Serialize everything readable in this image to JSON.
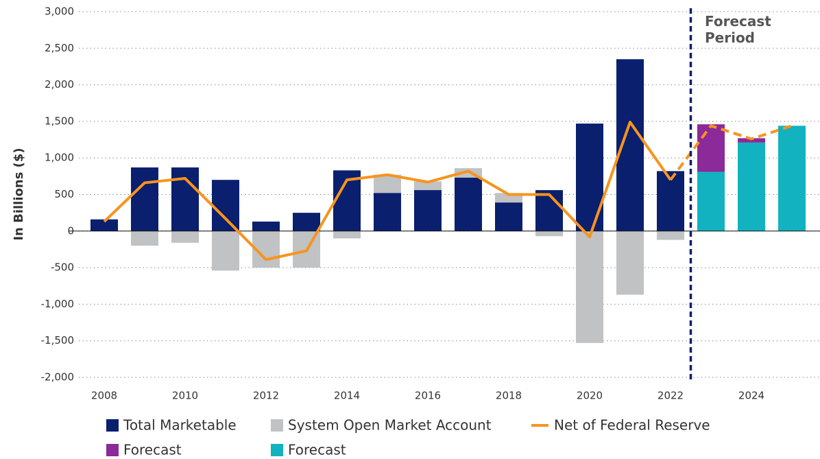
{
  "chart_data": {
    "type": "bar",
    "y_label": "In Billions ($)",
    "annotation": "Forecast Period",
    "categories": [
      "2008",
      null,
      "2010",
      null,
      "2012",
      null,
      "2014",
      null,
      "2016",
      null,
      "2018",
      null,
      "2020",
      null,
      "2022",
      null,
      "2024",
      null
    ],
    "series": [
      {
        "name": "Total Marketable",
        "type": "bar",
        "color": "#0a1f6e",
        "values": [
          160,
          870,
          870,
          700,
          130,
          250,
          830,
          520,
          560,
          730,
          390,
          560,
          1470,
          2350,
          820,
          null,
          null,
          null
        ]
      },
      {
        "name": "System Open Market Account",
        "type": "bar",
        "color": "#c0c2c4",
        "values": [
          null,
          -200,
          -160,
          -540,
          -500,
          -500,
          -100,
          770,
          680,
          860,
          520,
          -70,
          -1530,
          -870,
          -120,
          null,
          null,
          null
        ]
      },
      {
        "name": "Net of Federal Reserve",
        "type": "line",
        "color": "#f7941d",
        "values": [
          130,
          660,
          720,
          170,
          -390,
          -270,
          700,
          770,
          670,
          820,
          500,
          500,
          -80,
          1490,
          700,
          null,
          null,
          null
        ],
        "forecast_values": [
          null,
          null,
          null,
          null,
          null,
          null,
          null,
          null,
          null,
          null,
          null,
          null,
          null,
          null,
          700,
          1440,
          1260,
          1440
        ]
      },
      {
        "name": "Forecast",
        "type": "bar",
        "stack": true,
        "color": "#8b2a98",
        "values": [
          null,
          null,
          null,
          null,
          null,
          null,
          null,
          null,
          null,
          null,
          null,
          null,
          null,
          null,
          null,
          650,
          60,
          null
        ]
      },
      {
        "name": "Forecast",
        "type": "bar",
        "stack": true,
        "color": "#12b2c0",
        "values": [
          null,
          null,
          null,
          null,
          null,
          null,
          null,
          null,
          null,
          null,
          null,
          null,
          null,
          null,
          null,
          810,
          1210,
          1440
        ]
      }
    ],
    "ylim": [
      -2000,
      3000
    ],
    "yticks": [
      {
        "value": 3000,
        "label": "3,000"
      },
      {
        "value": 2500,
        "label": "2,500"
      },
      {
        "value": 2000,
        "label": "2,000"
      },
      {
        "value": 1500,
        "label": "1,500"
      },
      {
        "value": 1000,
        "label": "1,000"
      },
      500,
      0,
      -500,
      {
        "value": -1000,
        "label": "-1,000"
      },
      {
        "value": -1500,
        "label": "-1,500"
      },
      {
        "value": -2000,
        "label": "-2,000"
      }
    ],
    "grid": true
  }
}
